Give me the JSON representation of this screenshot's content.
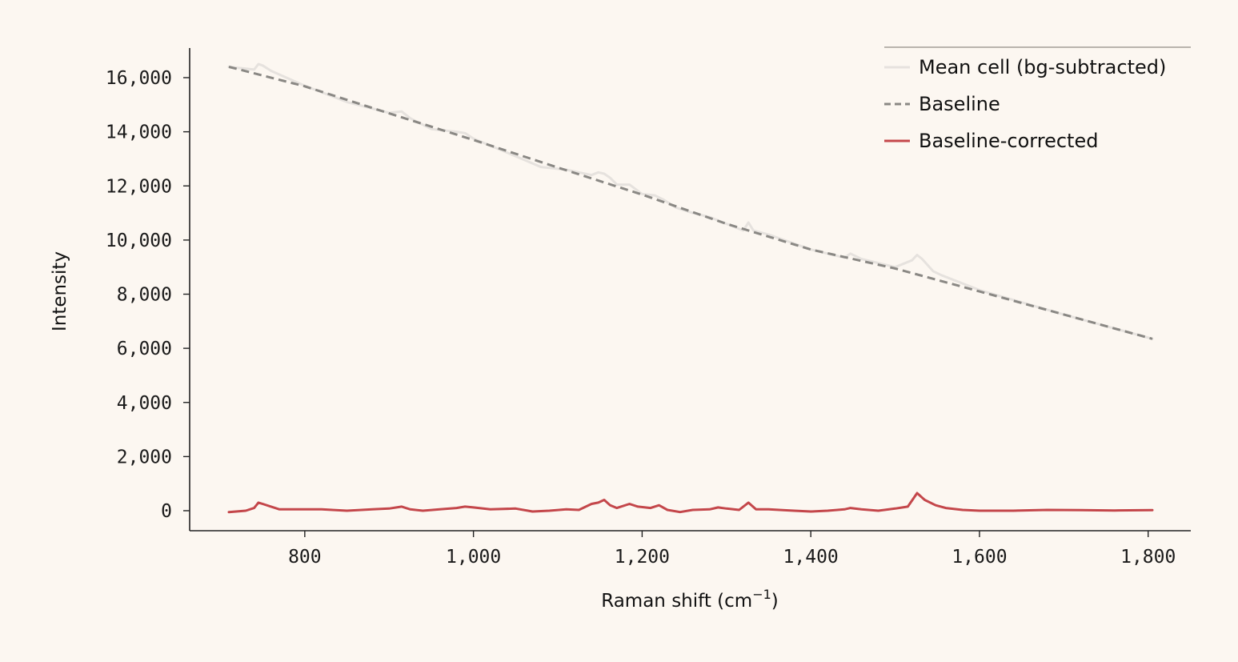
{
  "colors": {
    "background": "#fcf7f1",
    "axis": "#222222",
    "mean_cell": "#e6e2de",
    "baseline": "#8a8884",
    "corrected": "#c4474b",
    "legend_frame": "#b9b4ad"
  },
  "chart_data": {
    "type": "line",
    "title": "",
    "xlabel": "Raman shift (cm",
    "xlabel_sup": "−1",
    "xlabel_close": ")",
    "ylabel": "Intensity",
    "xlim": [
      675,
      1805
    ],
    "ylim": [
      -700,
      17100
    ],
    "grid": false,
    "legend_position": "top-right",
    "x_ticks": [
      800,
      1000,
      1200,
      1400,
      1600,
      1800
    ],
    "x_tick_labels": [
      "800",
      "1,000",
      "1,200",
      "1,400",
      "1,600",
      "1,800"
    ],
    "y_ticks": [
      0,
      2000,
      4000,
      6000,
      8000,
      10000,
      12000,
      14000,
      16000
    ],
    "y_tick_labels": [
      "0",
      "2,000",
      "4,000",
      "6,000",
      "8,000",
      "10,000",
      "12,000",
      "14,000",
      "16,000"
    ],
    "series": [
      {
        "name": "Mean cell (bg-subtracted)",
        "style": "solid",
        "x": [
          710,
          740,
          745,
          750,
          760,
          800,
          850,
          900,
          915,
          925,
          950,
          980,
          990,
          1000,
          1050,
          1080,
          1110,
          1140,
          1148,
          1155,
          1162,
          1170,
          1185,
          1200,
          1215,
          1225,
          1240,
          1260,
          1280,
          1300,
          1320,
          1326,
          1332,
          1350,
          1400,
          1440,
          1447,
          1460,
          1500,
          1520,
          1526,
          1532,
          1545,
          1555,
          1600,
          1700,
          1805
        ],
        "y": [
          16400,
          16300,
          16500,
          16450,
          16250,
          15700,
          15100,
          14700,
          14750,
          14500,
          14100,
          14000,
          13950,
          13750,
          13100,
          12700,
          12600,
          12400,
          12500,
          12450,
          12300,
          12050,
          12050,
          11700,
          11650,
          11500,
          11200,
          11000,
          10850,
          10600,
          10350,
          10650,
          10350,
          10200,
          9650,
          9350,
          9500,
          9300,
          9000,
          9250,
          9450,
          9300,
          8850,
          8700,
          8150,
          7250,
          6350
        ]
      },
      {
        "name": "Baseline",
        "style": "dashed",
        "x": [
          710,
          800,
          900,
          1000,
          1100,
          1200,
          1300,
          1400,
          1500,
          1600,
          1700,
          1805
        ],
        "y": [
          16400,
          15680,
          14680,
          13700,
          12680,
          11680,
          10600,
          9650,
          8950,
          8100,
          7250,
          6350
        ]
      },
      {
        "name": "Baseline-corrected",
        "style": "solid",
        "x": [
          710,
          730,
          740,
          745,
          750,
          760,
          770,
          790,
          820,
          850,
          880,
          900,
          915,
          925,
          940,
          960,
          980,
          990,
          1000,
          1020,
          1050,
          1070,
          1090,
          1110,
          1125,
          1140,
          1148,
          1155,
          1162,
          1170,
          1185,
          1195,
          1210,
          1220,
          1230,
          1245,
          1260,
          1280,
          1290,
          1300,
          1315,
          1326,
          1335,
          1350,
          1380,
          1400,
          1420,
          1440,
          1447,
          1460,
          1480,
          1500,
          1515,
          1526,
          1535,
          1548,
          1560,
          1580,
          1600,
          1640,
          1680,
          1720,
          1760,
          1805
        ],
        "y": [
          -50,
          0,
          100,
          300,
          250,
          150,
          50,
          50,
          50,
          0,
          50,
          80,
          150,
          50,
          0,
          50,
          100,
          150,
          120,
          50,
          80,
          -30,
          0,
          50,
          30,
          250,
          300,
          400,
          200,
          100,
          250,
          150,
          100,
          200,
          30,
          -50,
          30,
          50,
          120,
          80,
          30,
          300,
          50,
          50,
          0,
          -30,
          0,
          50,
          100,
          50,
          0,
          80,
          150,
          650,
          400,
          200,
          100,
          30,
          0,
          0,
          30,
          20,
          10,
          20
        ]
      }
    ]
  }
}
